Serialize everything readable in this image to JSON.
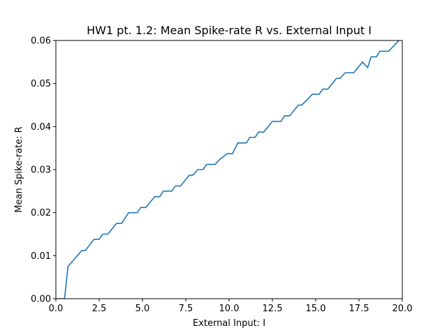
{
  "chart_data": {
    "type": "line",
    "title": "HW1 pt. 1.2: Mean Spike-rate R vs. External Input I",
    "xlabel": "External Input: I",
    "ylabel": "Mean Spike-rate: R",
    "xlim": [
      0.0,
      20.0
    ],
    "ylim": [
      0.0,
      0.06
    ],
    "xticks": [
      0.0,
      2.5,
      5.0,
      7.5,
      10.0,
      12.5,
      15.0,
      17.5,
      20.0
    ],
    "xtick_labels": [
      "0.0",
      "2.5",
      "5.0",
      "7.5",
      "10.0",
      "12.5",
      "15.0",
      "17.5",
      "20.0"
    ],
    "yticks": [
      0.0,
      0.01,
      0.02,
      0.03,
      0.04,
      0.05,
      0.06
    ],
    "ytick_labels": [
      "0.00",
      "0.01",
      "0.02",
      "0.03",
      "0.04",
      "0.05",
      "0.06"
    ],
    "grid": false,
    "legend": "none",
    "series": [
      {
        "color": "#1f77b4",
        "x": [
          0.0,
          0.4,
          0.5,
          0.7,
          1.5,
          1.7,
          2.2,
          2.5,
          2.7,
          3.0,
          3.5,
          3.8,
          4.2,
          4.7,
          4.9,
          5.2,
          5.7,
          6.0,
          6.2,
          6.7,
          6.9,
          7.2,
          7.7,
          7.9,
          8.2,
          8.5,
          8.7,
          9.2,
          9.5,
          9.9,
          10.2,
          10.5,
          11.0,
          11.2,
          11.5,
          11.7,
          12.0,
          12.5,
          13.0,
          13.2,
          13.5,
          14.0,
          14.2,
          14.5,
          14.8,
          15.2,
          15.4,
          15.7,
          16.2,
          16.4,
          16.7,
          17.2,
          17.7,
          18.0,
          18.2,
          18.5,
          18.7,
          19.2,
          19.5,
          19.8,
          20.0
        ],
        "y": [
          0.0,
          0.0,
          0.0,
          0.0075,
          0.0112,
          0.0112,
          0.0138,
          0.0138,
          0.015,
          0.015,
          0.0175,
          0.0175,
          0.02,
          0.02,
          0.0212,
          0.0212,
          0.0237,
          0.0237,
          0.025,
          0.025,
          0.0262,
          0.0262,
          0.0287,
          0.0287,
          0.03,
          0.03,
          0.0312,
          0.0312,
          0.0325,
          0.0337,
          0.0337,
          0.0362,
          0.0362,
          0.0375,
          0.0375,
          0.0387,
          0.0387,
          0.0412,
          0.0412,
          0.0425,
          0.0425,
          0.045,
          0.045,
          0.0462,
          0.0475,
          0.0475,
          0.0487,
          0.0487,
          0.0512,
          0.0512,
          0.0525,
          0.0525,
          0.055,
          0.0537,
          0.0562,
          0.0562,
          0.0575,
          0.0575,
          0.0587,
          0.06,
          0.0605
        ]
      }
    ]
  }
}
